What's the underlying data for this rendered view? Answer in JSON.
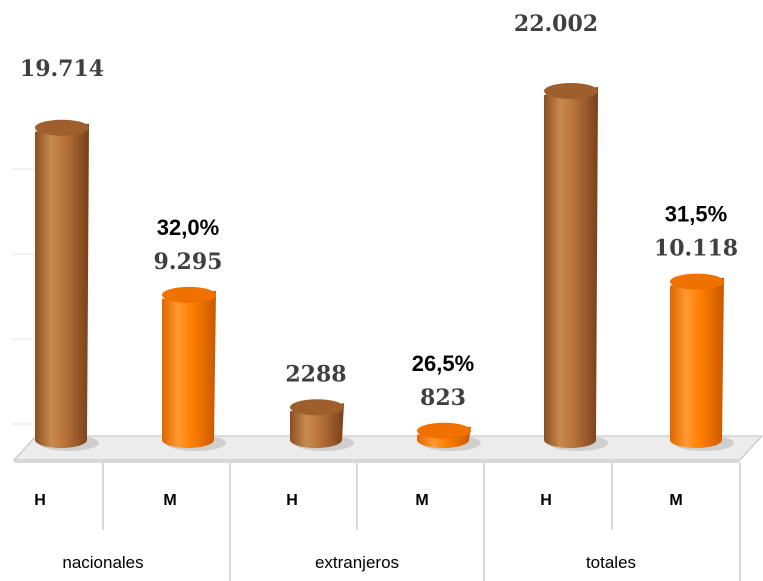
{
  "chart_data": {
    "type": "bar",
    "style": "3d-cylinder",
    "groups": [
      "nacionales",
      "extranjeros",
      "totales"
    ],
    "sub_categories": [
      "H",
      "M"
    ],
    "categories": [
      {
        "group": "nacionales",
        "sub": "H"
      },
      {
        "group": "nacionales",
        "sub": "M"
      },
      {
        "group": "extranjeros",
        "sub": "H"
      },
      {
        "group": "extranjeros",
        "sub": "M"
      },
      {
        "group": "totales",
        "sub": "H"
      },
      {
        "group": "totales",
        "sub": "M"
      }
    ],
    "values": [
      19714,
      9295,
      2288,
      823,
      22002,
      10118
    ],
    "value_labels": [
      "19.714",
      "9.295",
      "2288",
      "823",
      "22.002",
      "10.118"
    ],
    "percent_labels": [
      "",
      "32,0%",
      "",
      "26,5%",
      "",
      "31,5%"
    ],
    "ylim": [
      0,
      24000
    ],
    "grid": true,
    "legend": "none",
    "colors": {
      "H": "#b8733a",
      "M": "#ff7f00"
    }
  }
}
